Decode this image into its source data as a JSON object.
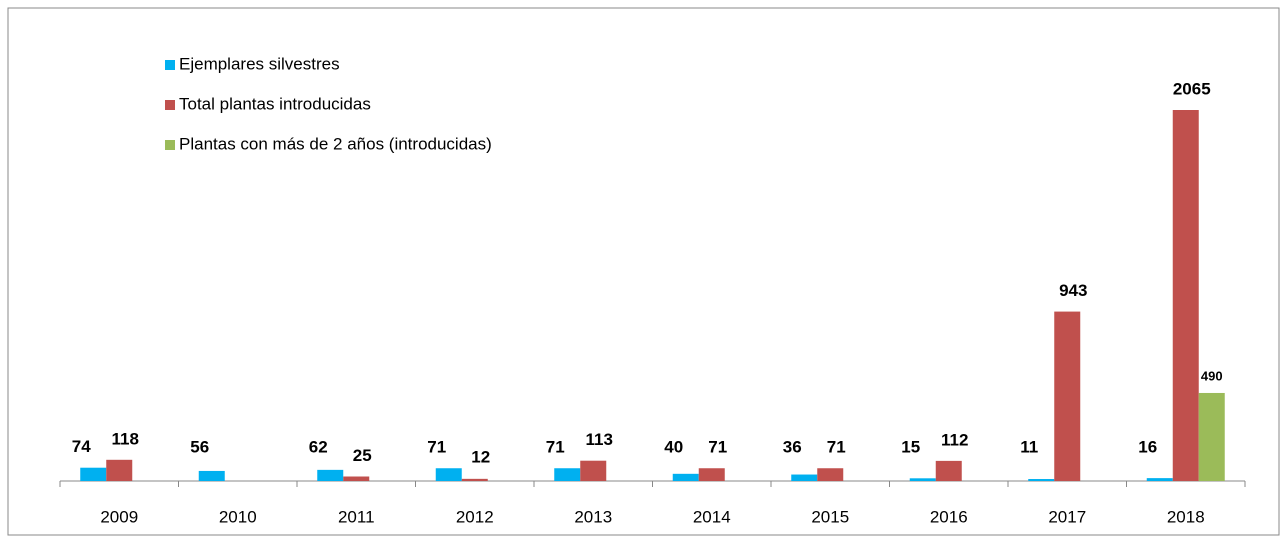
{
  "chart_data": {
    "type": "bar",
    "categories": [
      "2009",
      "2010",
      "2011",
      "2012",
      "2013",
      "2014",
      "2015",
      "2016",
      "2017",
      "2018"
    ],
    "series": [
      {
        "name": "Ejemplares silvestres",
        "color": "#00b0f0",
        "values": [
          74,
          56,
          62,
          71,
          71,
          40,
          36,
          15,
          11,
          16
        ]
      },
      {
        "name": "Total plantas introducidas",
        "color": "#c0504d",
        "values": [
          118,
          null,
          25,
          12,
          113,
          71,
          71,
          112,
          943,
          2065
        ]
      },
      {
        "name": "Plantas con más de 2 años (introducidas)",
        "color": "#9bbb59",
        "values": [
          null,
          null,
          null,
          null,
          null,
          null,
          null,
          null,
          null,
          490
        ]
      }
    ],
    "legend": "top-left"
  }
}
